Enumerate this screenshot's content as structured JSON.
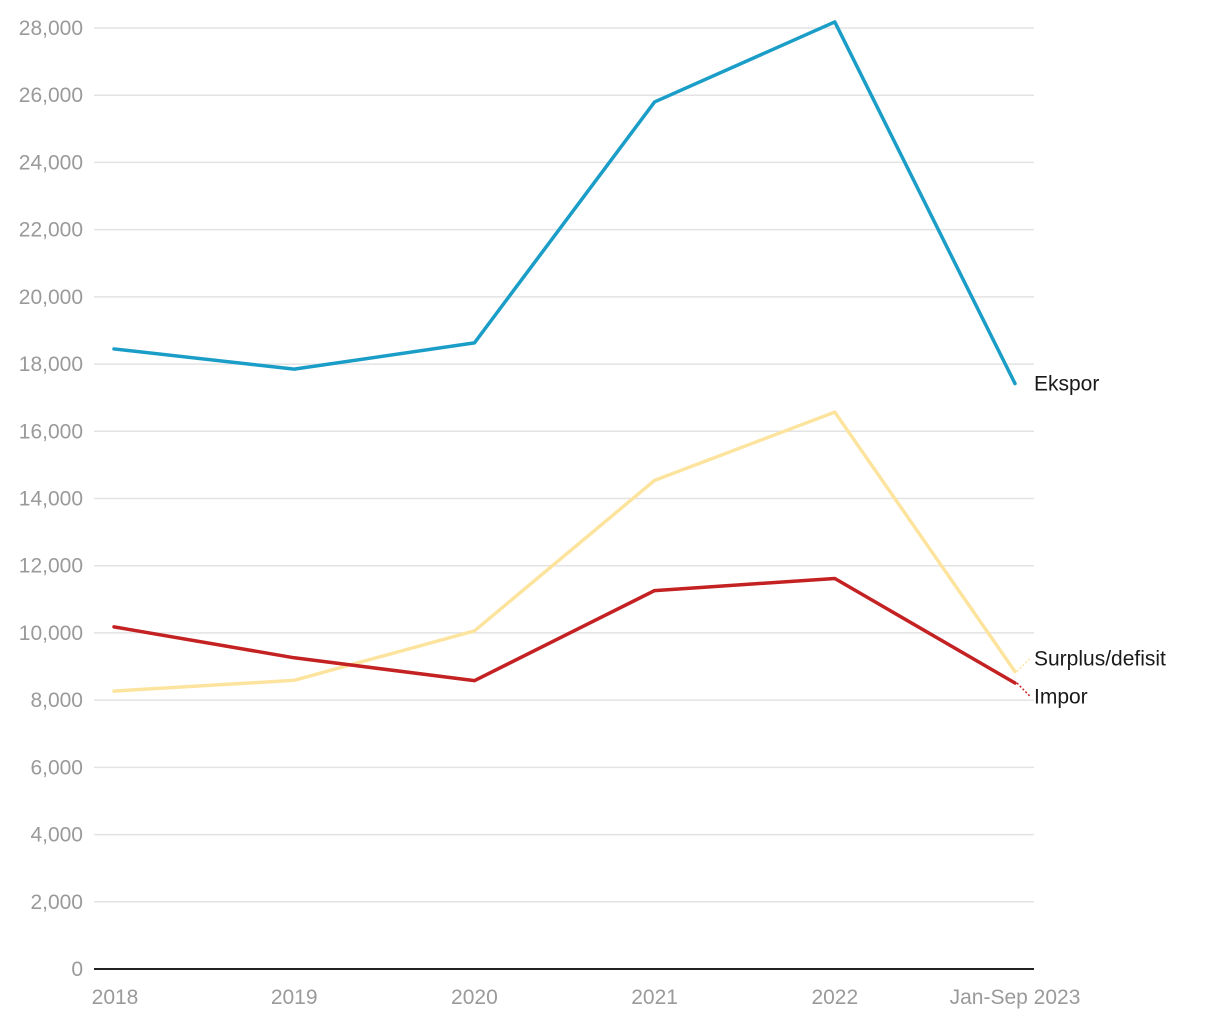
{
  "chart_data": {
    "type": "line",
    "title": "",
    "xlabel": "",
    "ylabel": "",
    "categories": [
      "2018",
      "2019",
      "2020",
      "2021",
      "2022",
      "Jan-Sep 2023"
    ],
    "ylim": [
      0,
      28000
    ],
    "yticks": [
      0,
      2000,
      4000,
      6000,
      8000,
      10000,
      12000,
      14000,
      16000,
      18000,
      20000,
      22000,
      24000,
      26000,
      28000
    ],
    "ytick_labels": [
      "0",
      "2,000",
      "4,000",
      "6,000",
      "8,000",
      "10,000",
      "12,000",
      "14,000",
      "16,000",
      "18,000",
      "20,000",
      "22,000",
      "24,000",
      "26,000",
      "28,000"
    ],
    "grid": true,
    "legend": "inline-right",
    "series": [
      {
        "key": "ekspor",
        "name": "Ekspor",
        "color": "#1a9dc7",
        "values": [
          18450,
          17850,
          18630,
          25800,
          28180,
          17420
        ]
      },
      {
        "key": "surplus",
        "name": "Surplus/defisit",
        "color": "#fde49e",
        "values": [
          8270,
          8590,
          10060,
          14540,
          16570,
          8850
        ]
      },
      {
        "key": "impor",
        "name": "Impor",
        "color": "#c42122",
        "values": [
          10180,
          9260,
          8580,
          11260,
          11620,
          8510
        ]
      }
    ]
  }
}
